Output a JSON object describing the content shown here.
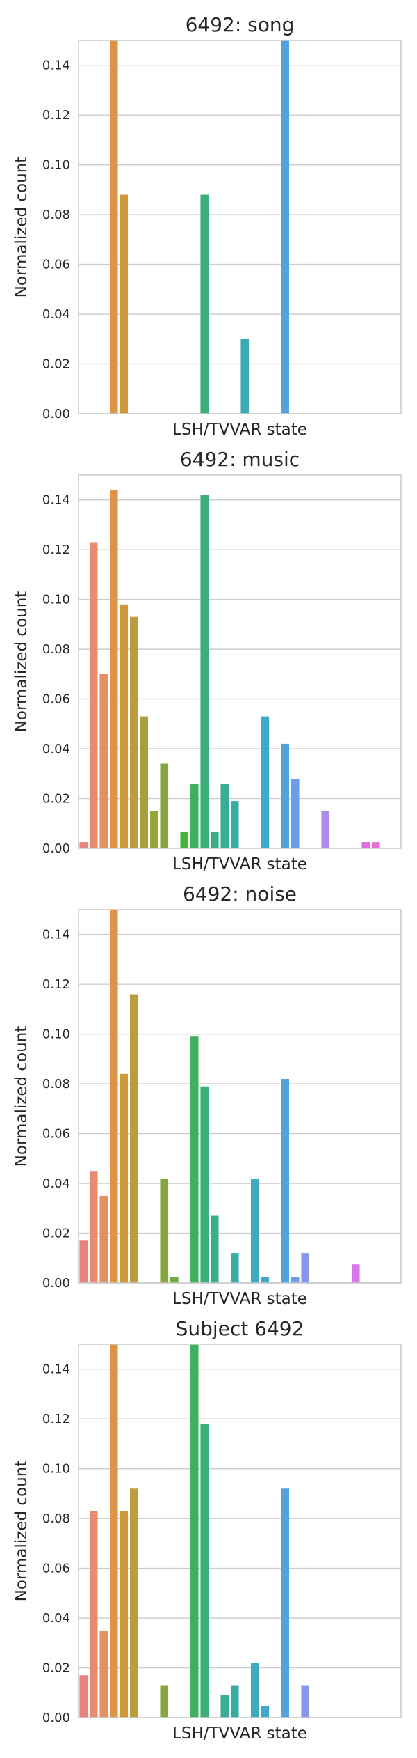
{
  "chart_data": [
    {
      "type": "bar",
      "title": "6492: song",
      "xlabel": "LSH/TVVAR state",
      "ylabel": "Normalized count",
      "ylim": [
        0,
        0.15
      ],
      "yticks": [
        "0.00",
        "0.02",
        "0.04",
        "0.06",
        "0.08",
        "0.10",
        "0.12",
        "0.14"
      ],
      "grid": "horizontal",
      "values": [
        0,
        0,
        0,
        0.15,
        0.088,
        0,
        0,
        0,
        0,
        0,
        0,
        0,
        0.088,
        0,
        0,
        0,
        0.03,
        0,
        0,
        0,
        0.15,
        0,
        0,
        0,
        0,
        0,
        0,
        0,
        0,
        0,
        0,
        0
      ]
    },
    {
      "type": "bar",
      "title": "6492: music",
      "xlabel": "LSH/TVVAR state",
      "ylabel": "Normalized count",
      "ylim": [
        0,
        0.15
      ],
      "yticks": [
        "0.00",
        "0.02",
        "0.04",
        "0.06",
        "0.08",
        "0.10",
        "0.12",
        "0.14"
      ],
      "grid": "horizontal",
      "values": [
        0.0025,
        0.123,
        0.07,
        0.144,
        0.098,
        0.093,
        0.053,
        0.015,
        0.034,
        0,
        0.0065,
        0.026,
        0.142,
        0.0065,
        0.026,
        0.019,
        0,
        0,
        0.053,
        0,
        0.042,
        0.028,
        0,
        0,
        0.015,
        0,
        0,
        0,
        0.0025,
        0.0025,
        0,
        0
      ]
    },
    {
      "type": "bar",
      "title": "6492: noise",
      "xlabel": "LSH/TVVAR state",
      "ylabel": "Normalized count",
      "ylim": [
        0,
        0.15
      ],
      "yticks": [
        "0.00",
        "0.02",
        "0.04",
        "0.06",
        "0.08",
        "0.10",
        "0.12",
        "0.14"
      ],
      "grid": "horizontal",
      "values": [
        0.017,
        0.045,
        0.035,
        0.15,
        0.084,
        0.116,
        0,
        0,
        0.042,
        0.0025,
        0,
        0.099,
        0.079,
        0.027,
        0,
        0.012,
        0,
        0.042,
        0.0025,
        0,
        0.082,
        0.0025,
        0.012,
        0,
        0,
        0,
        0,
        0.0075,
        0,
        0,
        0,
        0
      ]
    },
    {
      "type": "bar",
      "title": "Subject 6492",
      "xlabel": "LSH/TVVAR state",
      "ylabel": "Normalized count",
      "ylim": [
        0,
        0.15
      ],
      "yticks": [
        "0.00",
        "0.02",
        "0.04",
        "0.06",
        "0.08",
        "0.10",
        "0.12",
        "0.14"
      ],
      "grid": "horizontal",
      "values": [
        0.017,
        0.083,
        0.035,
        0.15,
        0.083,
        0.092,
        0,
        0,
        0.013,
        0,
        0,
        0.15,
        0.118,
        0,
        0.009,
        0.013,
        0,
        0.022,
        0.0045,
        0,
        0.092,
        0,
        0.013,
        0,
        0,
        0,
        0,
        0,
        0,
        0,
        0,
        0
      ]
    }
  ],
  "colors": [
    "#e8837d",
    "#e98a73",
    "#e29161",
    "#dc9447",
    "#cf993b",
    "#bb9d3d",
    "#a79f3b",
    "#96a43a",
    "#86a73c",
    "#6bac3c",
    "#4ab03d",
    "#3fb05f",
    "#3aaf78",
    "#39ae89",
    "#38ac97",
    "#38aba5",
    "#3aaab4",
    "#3caac1",
    "#3ea9cd",
    "#45a7d9",
    "#53a2e0",
    "#6d9de6",
    "#8796ea",
    "#9a91ed",
    "#ad8bee",
    "#bd84ee",
    "#cb7ded",
    "#d975eb",
    "#e26ee3",
    "#e86ed3",
    "#ea74c1",
    "#ec79b0"
  ]
}
